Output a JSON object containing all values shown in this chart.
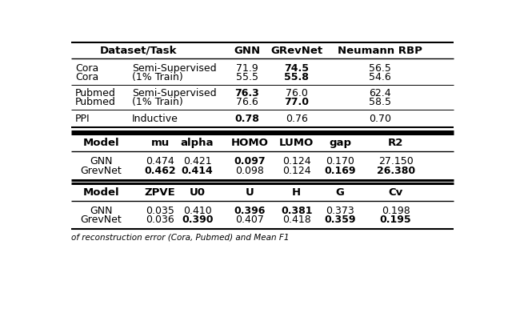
{
  "bg_color": "#ffffff",
  "table1_header_labels": [
    "Dataset/Task",
    "GNN",
    "GRevNet",
    "Neumann RBP"
  ],
  "table1_rows": [
    [
      "Cora",
      "Semi-Supervised",
      "71.9",
      "74.5",
      "56.5"
    ],
    [
      "Cora",
      "(1% Train)",
      "55.5",
      "55.8",
      "54.6"
    ],
    [
      "Pubmed",
      "Semi-Supervised",
      "76.3",
      "76.0",
      "62.4"
    ],
    [
      "Pubmed",
      "(1% Train)",
      "76.6",
      "77.0",
      "58.5"
    ],
    [
      "PPI",
      "Inductive",
      "0.78",
      "0.76",
      "0.70"
    ]
  ],
  "table1_bold": [
    [
      false,
      false,
      false,
      true,
      false
    ],
    [
      false,
      false,
      false,
      true,
      false
    ],
    [
      false,
      false,
      true,
      false,
      false
    ],
    [
      false,
      false,
      false,
      true,
      false
    ],
    [
      false,
      false,
      true,
      false,
      false
    ]
  ],
  "table2_header": [
    "Model",
    "mu",
    "alpha",
    "HOMO",
    "LUMO",
    "gap",
    "R2"
  ],
  "table2_rows": [
    [
      "GNN",
      "0.474",
      "0.421",
      "0.097",
      "0.124",
      "0.170",
      "27.150"
    ],
    [
      "GrevNet",
      "0.462",
      "0.414",
      "0.098",
      "0.124",
      "0.169",
      "26.380"
    ]
  ],
  "table2_bold": [
    [
      false,
      false,
      false,
      true,
      false,
      false,
      false
    ],
    [
      false,
      true,
      true,
      false,
      false,
      true,
      true
    ]
  ],
  "table3_header": [
    "Model",
    "ZPVE",
    "U0",
    "U",
    "H",
    "G",
    "Cv"
  ],
  "table3_rows": [
    [
      "GNN",
      "0.035",
      "0.410",
      "0.396",
      "0.381",
      "0.373",
      "0.198"
    ],
    [
      "GrevNet",
      "0.036",
      "0.390",
      "0.407",
      "0.418",
      "0.359",
      "0.195"
    ]
  ],
  "table3_bold": [
    [
      false,
      false,
      false,
      true,
      true,
      false,
      false
    ],
    [
      false,
      false,
      true,
      false,
      false,
      true,
      true
    ]
  ],
  "caption": "of reconstruction error (Cora, Pubmed) and Mean F1"
}
